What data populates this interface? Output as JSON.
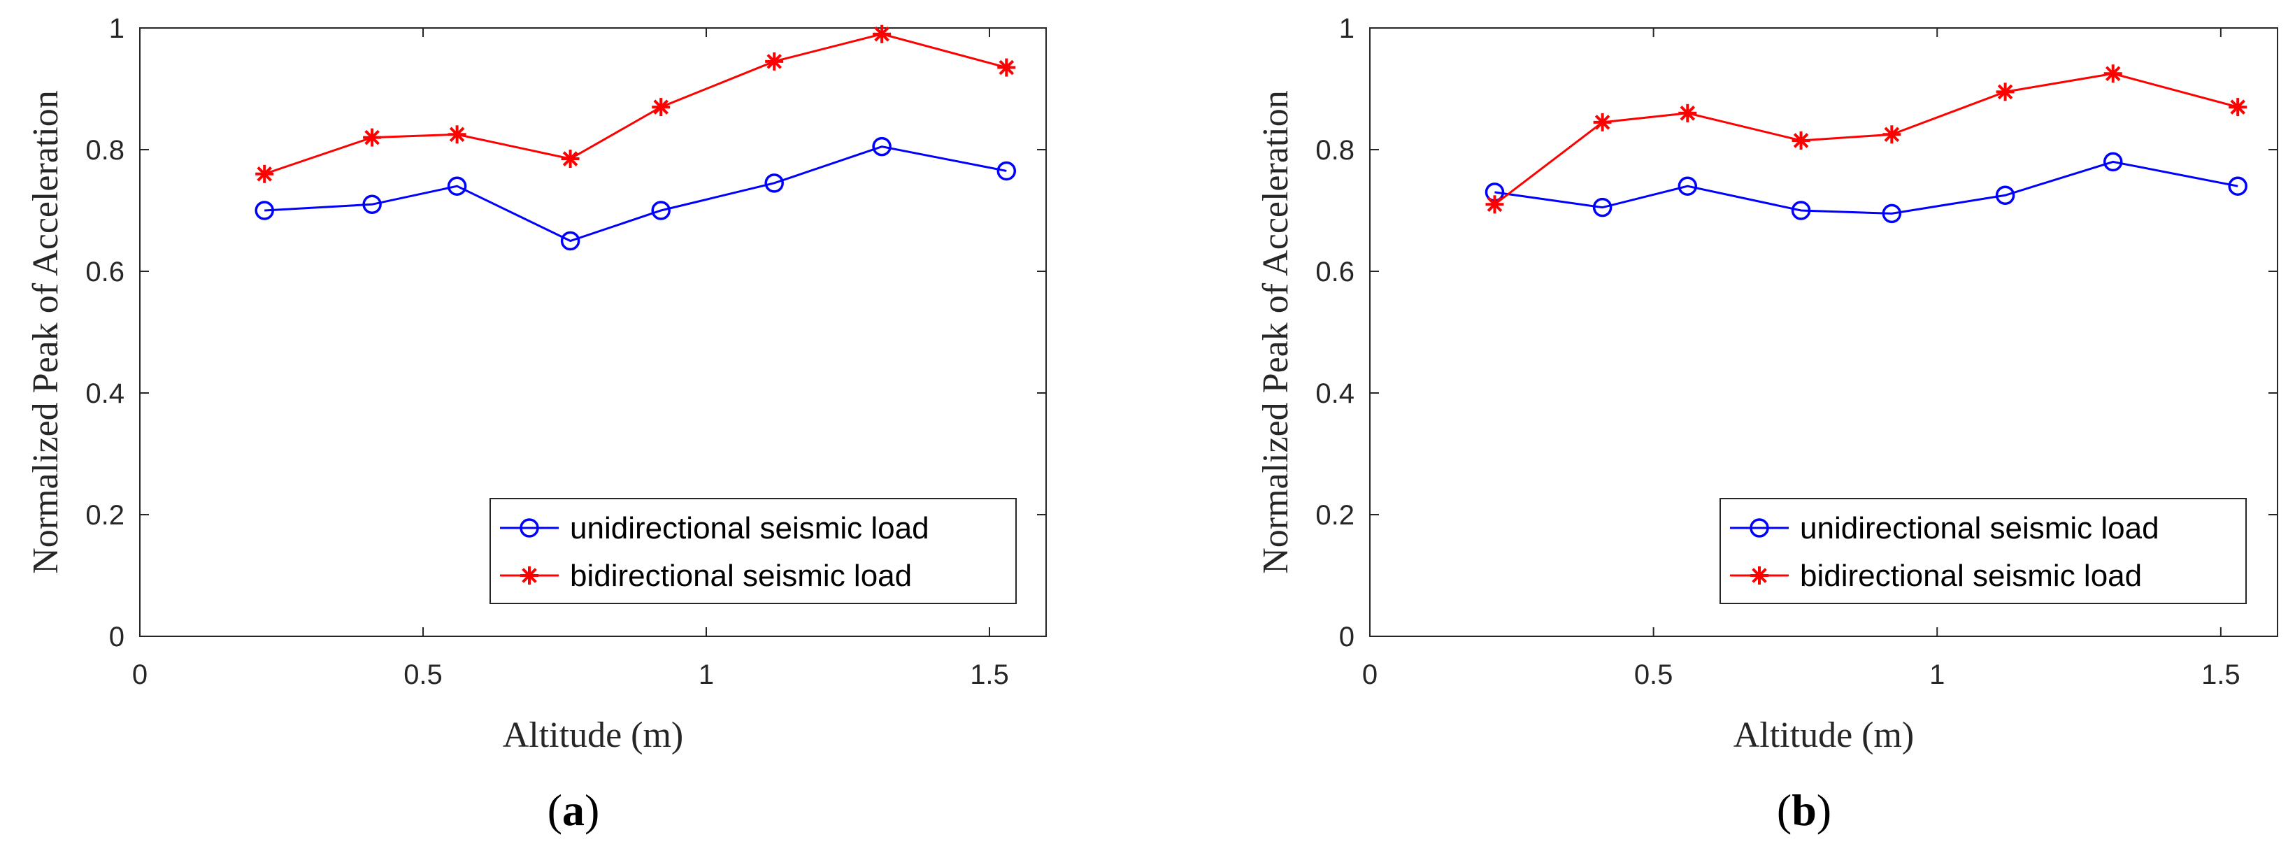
{
  "chart_data": [
    {
      "type": "line",
      "panel": "a",
      "xlabel": "Altitude (m)",
      "ylabel": "Normalized Peak of Acceleration",
      "xlim": [
        0,
        1.6
      ],
      "ylim": [
        0,
        1
      ],
      "xticks": [
        0,
        0.5,
        1,
        1.5
      ],
      "xtick_labels": [
        "0",
        "0.5",
        "1",
        "1.5"
      ],
      "yticks": [
        0,
        0.2,
        0.4,
        0.6,
        0.8,
        1
      ],
      "ytick_labels": [
        "0",
        "0.2",
        "0.4",
        "0.6",
        "0.8",
        "1"
      ],
      "grid": false,
      "legend_position": "bottom-right",
      "series": [
        {
          "name": "unidirectional seismic load",
          "color": "#0000ff",
          "marker": "circle",
          "x": [
            0.22,
            0.41,
            0.56,
            0.76,
            0.92,
            1.12,
            1.31,
            1.53
          ],
          "y": [
            0.7,
            0.71,
            0.74,
            0.65,
            0.7,
            0.745,
            0.805,
            0.765
          ]
        },
        {
          "name": "bidirectional seismic load",
          "color": "#ff0000",
          "marker": "asterisk",
          "x": [
            0.22,
            0.41,
            0.56,
            0.76,
            0.92,
            1.12,
            1.31,
            1.53
          ],
          "y": [
            0.76,
            0.82,
            0.825,
            0.785,
            0.87,
            0.945,
            0.99,
            0.935
          ]
        }
      ],
      "caption_open": "(",
      "caption_letter": "a",
      "caption_close": ")"
    },
    {
      "type": "line",
      "panel": "b",
      "xlabel": "Altitude (m)",
      "ylabel": "Normalized Peak of Acceleration",
      "xlim": [
        0,
        1.6
      ],
      "ylim": [
        0,
        1
      ],
      "xticks": [
        0,
        0.5,
        1,
        1.5
      ],
      "xtick_labels": [
        "0",
        "0.5",
        "1",
        "1.5"
      ],
      "yticks": [
        0,
        0.2,
        0.4,
        0.6,
        0.8,
        1
      ],
      "ytick_labels": [
        "0",
        "0.2",
        "0.4",
        "0.6",
        "0.8",
        "1"
      ],
      "grid": false,
      "legend_position": "bottom-right",
      "series": [
        {
          "name": "unidirectional seismic load",
          "color": "#0000ff",
          "marker": "circle",
          "x": [
            0.22,
            0.41,
            0.56,
            0.76,
            0.92,
            1.12,
            1.31,
            1.53
          ],
          "y": [
            0.73,
            0.705,
            0.74,
            0.7,
            0.695,
            0.725,
            0.78,
            0.74
          ]
        },
        {
          "name": "bidirectional seismic load",
          "color": "#ff0000",
          "marker": "asterisk",
          "x": [
            0.22,
            0.41,
            0.56,
            0.76,
            0.92,
            1.12,
            1.31,
            1.53
          ],
          "y": [
            0.71,
            0.845,
            0.86,
            0.815,
            0.825,
            0.895,
            0.925,
            0.87
          ]
        }
      ],
      "caption_open": "(",
      "caption_letter": "b",
      "caption_close": ")"
    }
  ]
}
